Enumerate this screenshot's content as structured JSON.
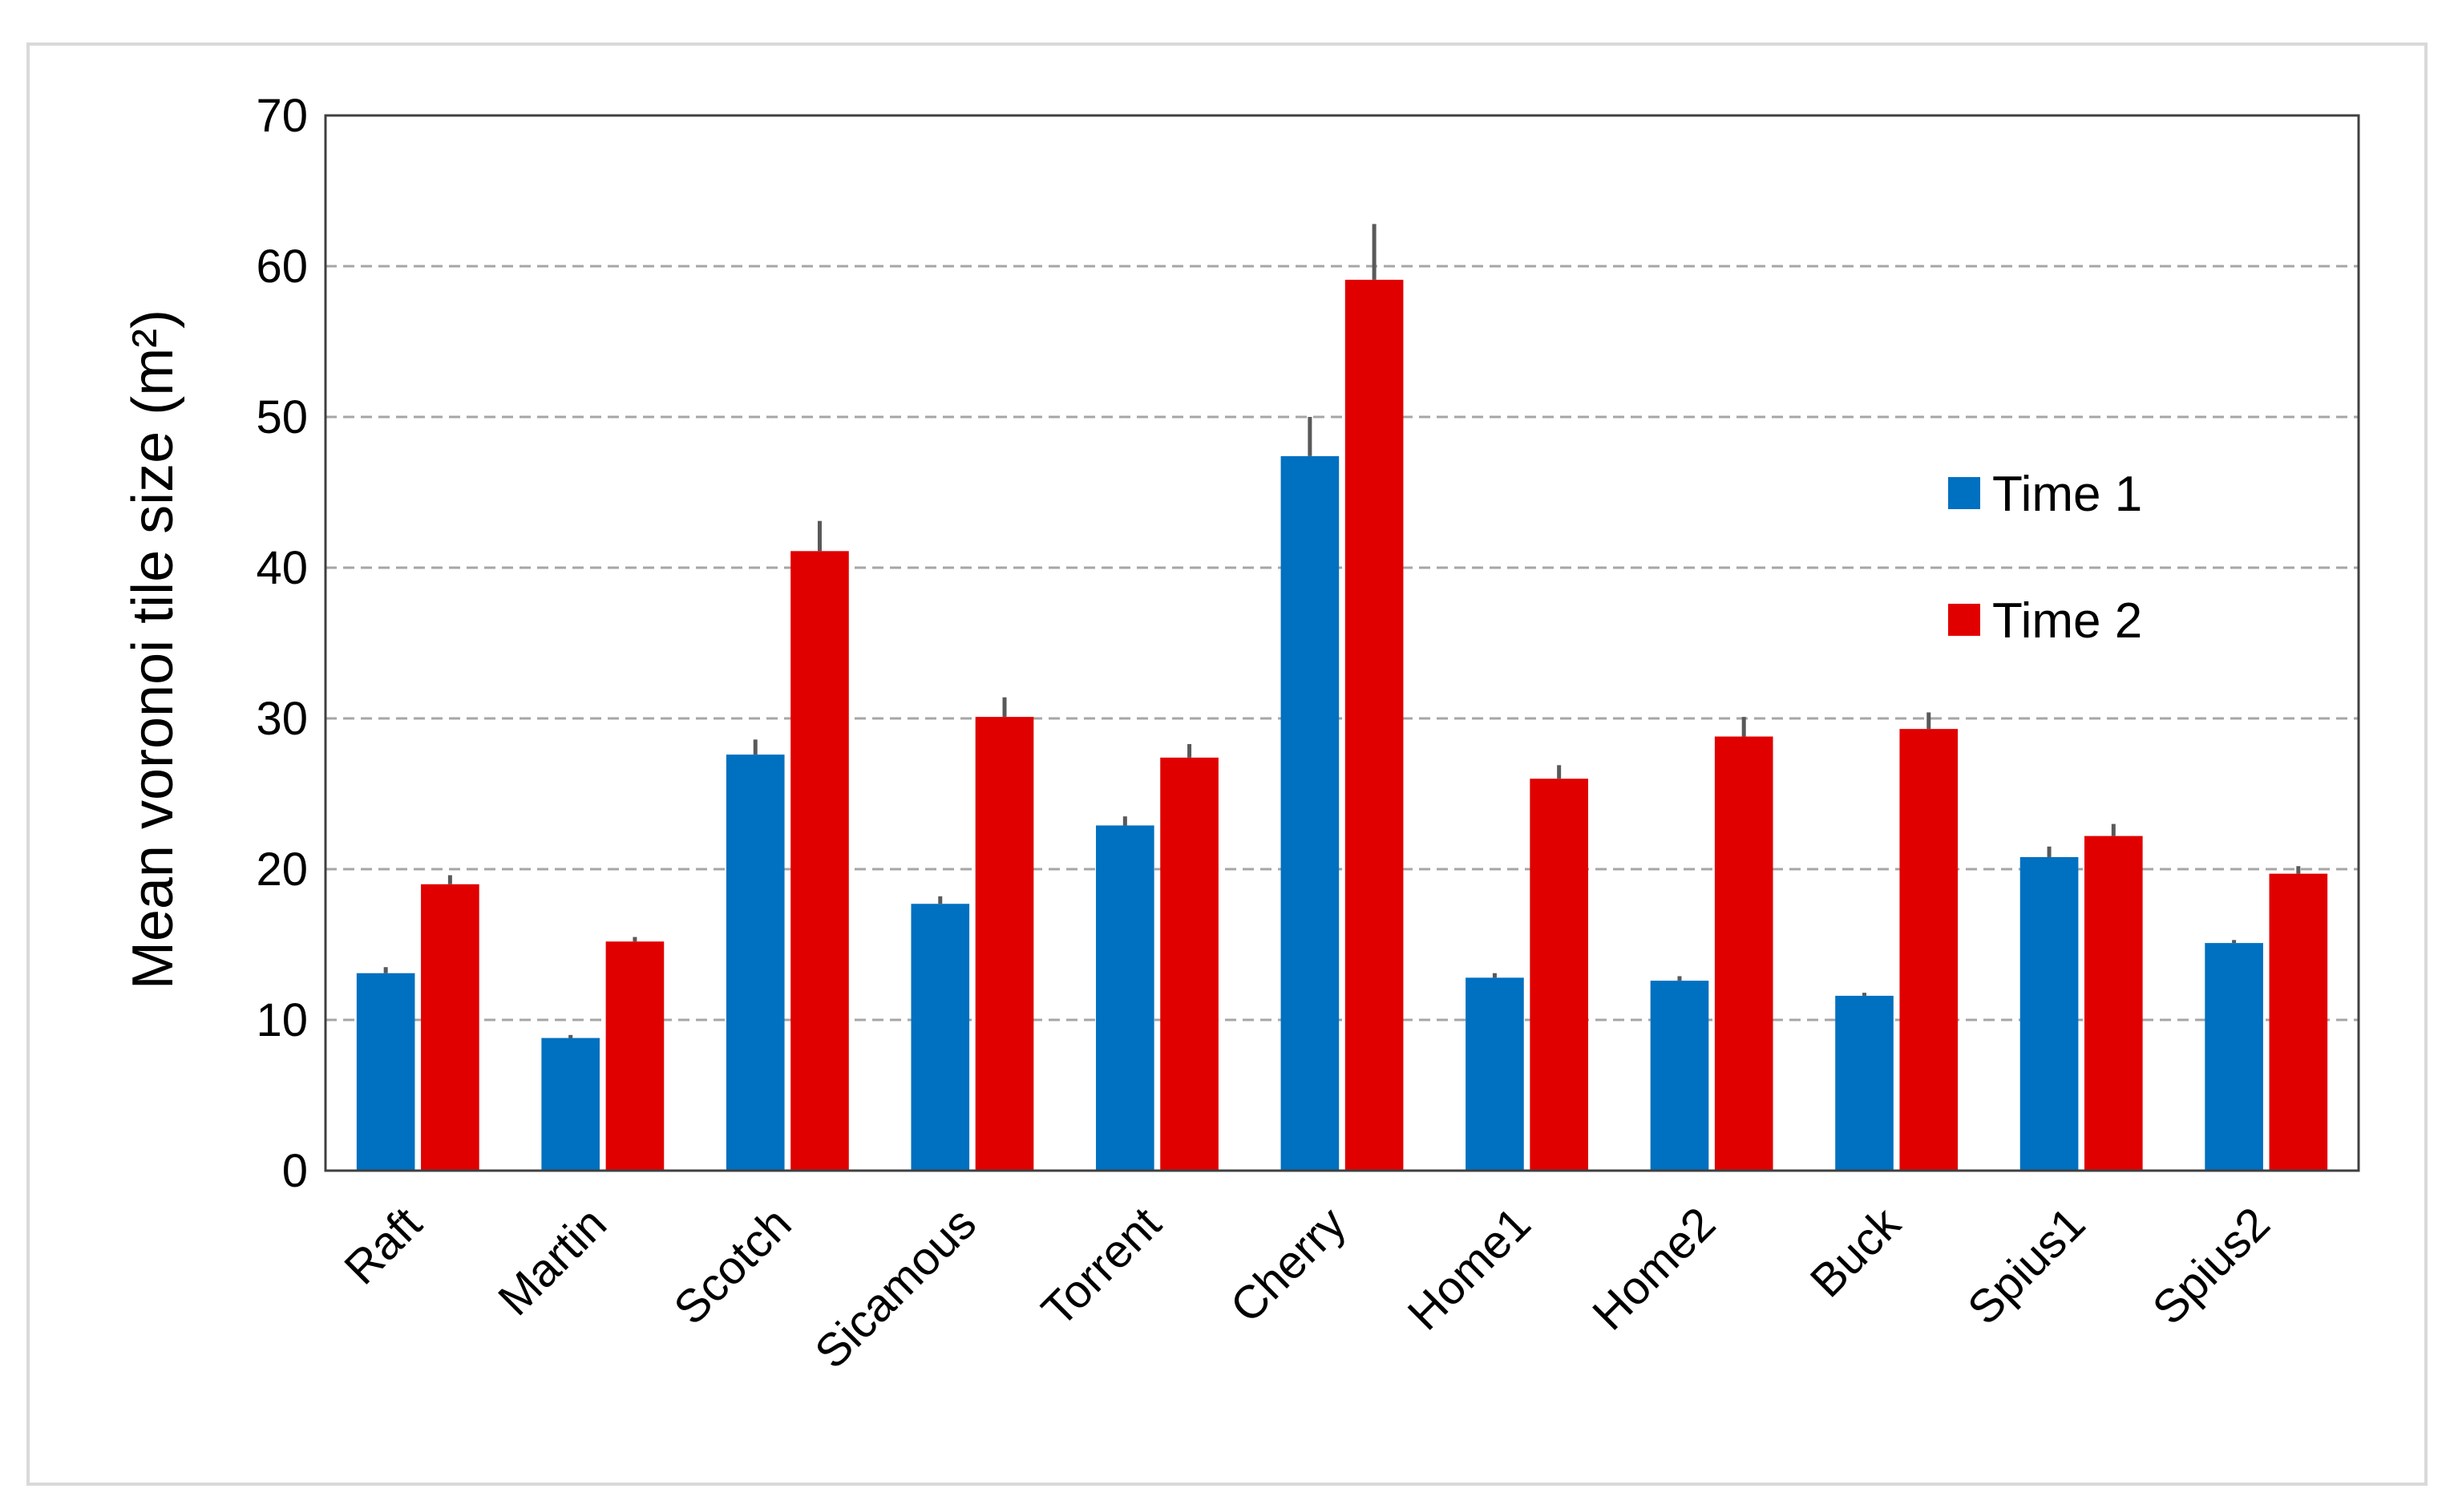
{
  "chart_data": {
    "type": "bar",
    "y_label": "Mean voronoi tile size (m²)",
    "categories": [
      "Raft",
      "Martin",
      "Scotch",
      "Sicamous",
      "Torrent",
      "Cherry",
      "Home1",
      "Home2",
      "Buck",
      "Spius1",
      "Spius2"
    ],
    "series": [
      {
        "name": "Time 1",
        "color": "#0070c0",
        "values": [
          13.1,
          8.8,
          27.6,
          17.7,
          22.9,
          47.4,
          12.8,
          12.6,
          11.6,
          20.8,
          15.1
        ],
        "errors": [
          0.4,
          0.2,
          1.0,
          0.5,
          0.6,
          2.6,
          0.3,
          0.3,
          0.2,
          0.7,
          0.2
        ]
      },
      {
        "name": "Time 2",
        "color": "#e00000",
        "values": [
          19.0,
          15.2,
          41.1,
          30.1,
          27.4,
          59.1,
          26.0,
          28.8,
          29.3,
          22.2,
          19.7
        ],
        "errors": [
          0.6,
          0.3,
          2.0,
          1.3,
          0.9,
          3.7,
          0.9,
          1.3,
          1.1,
          0.8,
          0.5
        ]
      }
    ],
    "ylim": [
      0,
      70
    ],
    "yticks": [
      0,
      10,
      20,
      30,
      40,
      50,
      60,
      70
    ],
    "grid": true,
    "legend": "right"
  }
}
